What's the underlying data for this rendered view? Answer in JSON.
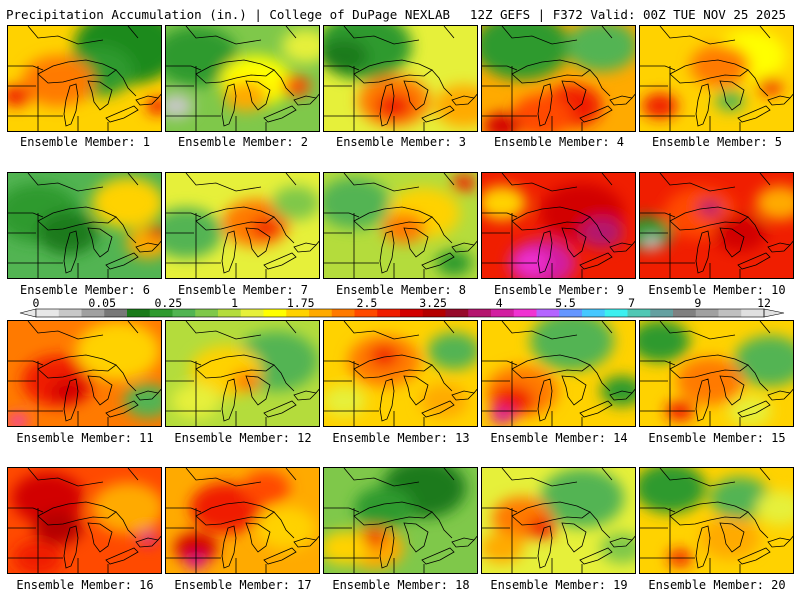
{
  "header": {
    "title": "Precipitation Accumulation (in.) | College of DuPage NEXLAB",
    "run_info": "12Z GEFS | F372 Valid: 00Z TUE NOV 25 2025"
  },
  "colorbar": {
    "tick_labels": [
      "0",
      "0.05",
      "0.25",
      "1",
      "1.75",
      "2.5",
      "3.25",
      "4",
      "5.5",
      "7",
      "9",
      "12"
    ],
    "colors": [
      "#e8e8e8",
      "#c8c8c8",
      "#a0a0a0",
      "#787878",
      "#1a7a1a",
      "#2f9a2f",
      "#52b452",
      "#7fc84a",
      "#b4dc3c",
      "#e6f03a",
      "#ffff00",
      "#ffd200",
      "#ffaa00",
      "#ff7a00",
      "#ff4a00",
      "#f01e00",
      "#d20000",
      "#b40000",
      "#960a2a",
      "#b4146e",
      "#d21ea0",
      "#f032d2",
      "#b464ff",
      "#6496ff",
      "#46c8ff",
      "#3cf0f0",
      "#50c8b4",
      "#64a0a0",
      "#808080",
      "#a0a0a0",
      "#c0c0c0",
      "#e0e0e0"
    ]
  },
  "members": [
    {
      "label": "Ensemble Member: 1",
      "base": "#ffd200",
      "blobs": [
        [
          "#1a8a1a",
          120,
          20,
          45
        ],
        [
          "#2f9a2f",
          90,
          45,
          30
        ],
        [
          "#ff7a00",
          50,
          55,
          30
        ],
        [
          "#f01e00",
          8,
          70,
          12
        ],
        [
          "#f01e00",
          150,
          80,
          10
        ]
      ]
    },
    {
      "label": "Ensemble Member: 2",
      "base": "#7fc84a",
      "blobs": [
        [
          "#2f9a2f",
          30,
          30,
          35
        ],
        [
          "#c8c8c8",
          10,
          80,
          14
        ],
        [
          "#ffff00",
          90,
          55,
          30
        ],
        [
          "#ffaa00",
          80,
          70,
          18
        ],
        [
          "#ff4a00",
          130,
          60,
          12
        ],
        [
          "#e6f03a",
          140,
          20,
          20
        ]
      ]
    },
    {
      "label": "Ensemble Member: 3",
      "base": "#e6f03a",
      "blobs": [
        [
          "#2f9a2f",
          40,
          20,
          40
        ],
        [
          "#1a7a1a",
          20,
          30,
          20
        ],
        [
          "#ff7a00",
          70,
          75,
          30
        ],
        [
          "#f01e00",
          70,
          80,
          15
        ],
        [
          "#ffaa00",
          140,
          80,
          25
        ]
      ]
    },
    {
      "label": "Ensemble Member: 4",
      "base": "#ffaa00",
      "blobs": [
        [
          "#2f9a2f",
          40,
          20,
          40
        ],
        [
          "#52b452",
          120,
          20,
          30
        ],
        [
          "#f01e00",
          90,
          80,
          25
        ],
        [
          "#ff4a00",
          60,
          90,
          25
        ],
        [
          "#d20000",
          20,
          100,
          15
        ]
      ]
    },
    {
      "label": "Ensemble Member: 5",
      "base": "#ffd200",
      "blobs": [
        [
          "#ffff00",
          110,
          30,
          30
        ],
        [
          "#ff7a00",
          80,
          40,
          25
        ],
        [
          "#f01e00",
          20,
          80,
          15
        ],
        [
          "#52b452",
          90,
          75,
          12
        ],
        [
          "#f01e00",
          130,
          60,
          10
        ]
      ]
    },
    {
      "label": "Ensemble Member: 6",
      "base": "#52b452",
      "blobs": [
        [
          "#2f9a2f",
          30,
          40,
          35
        ],
        [
          "#1a7a1a",
          60,
          60,
          25
        ],
        [
          "#ffd200",
          120,
          30,
          30
        ],
        [
          "#ffaa00",
          140,
          70,
          18
        ],
        [
          "#f01e00",
          150,
          60,
          8
        ]
      ]
    },
    {
      "label": "Ensemble Member: 7",
      "base": "#e6f03a",
      "blobs": [
        [
          "#52b452",
          20,
          60,
          30
        ],
        [
          "#ff7a00",
          90,
          50,
          28
        ],
        [
          "#f01e00",
          100,
          55,
          12
        ],
        [
          "#7fc84a",
          130,
          30,
          20
        ]
      ]
    },
    {
      "label": "Ensemble Member: 8",
      "base": "#b4dc3c",
      "blobs": [
        [
          "#52b452",
          30,
          30,
          30
        ],
        [
          "#ffd200",
          100,
          40,
          30
        ],
        [
          "#ff7a00",
          80,
          55,
          18
        ],
        [
          "#f01e00",
          140,
          10,
          10
        ],
        [
          "#2f9a2f",
          130,
          90,
          15
        ]
      ]
    },
    {
      "label": "Ensemble Member: 9",
      "base": "#f01e00",
      "blobs": [
        [
          "#d20000",
          100,
          40,
          35
        ],
        [
          "#d21ea0",
          60,
          90,
          28
        ],
        [
          "#f032d2",
          50,
          90,
          14
        ],
        [
          "#b4146e",
          120,
          60,
          18
        ],
        [
          "#ffd200",
          20,
          30,
          20
        ]
      ]
    },
    {
      "label": "Ensemble Member: 10",
      "base": "#f01e00",
      "blobs": [
        [
          "#2f9a2f",
          8,
          60,
          20
        ],
        [
          "#c8c8c8",
          12,
          70,
          8
        ],
        [
          "#ff4a00",
          60,
          40,
          30
        ],
        [
          "#d20000",
          100,
          60,
          22
        ],
        [
          "#b4146e",
          70,
          35,
          10
        ],
        [
          "#ffaa00",
          140,
          30,
          20
        ]
      ]
    },
    {
      "label": "Ensemble Member: 11",
      "base": "#ff7a00",
      "blobs": [
        [
          "#f01e00",
          50,
          60,
          30
        ],
        [
          "#d20000",
          60,
          70,
          15
        ],
        [
          "#ffd200",
          110,
          30,
          35
        ],
        [
          "#52b452",
          140,
          80,
          20
        ],
        [
          "#f032d2",
          10,
          100,
          8
        ]
      ]
    },
    {
      "label": "Ensemble Member: 12",
      "base": "#b4dc3c",
      "blobs": [
        [
          "#52b452",
          110,
          40,
          35
        ],
        [
          "#ffd200",
          60,
          50,
          30
        ],
        [
          "#ff7a00",
          80,
          60,
          12
        ],
        [
          "#e6f03a",
          30,
          80,
          20
        ]
      ]
    },
    {
      "label": "Ensemble Member: 13",
      "base": "#ffd200",
      "blobs": [
        [
          "#ff7a00",
          60,
          40,
          30
        ],
        [
          "#f01e00",
          60,
          35,
          12
        ],
        [
          "#52b452",
          130,
          30,
          22
        ],
        [
          "#ffaa00",
          120,
          80,
          20
        ],
        [
          "#e6f03a",
          20,
          80,
          18
        ]
      ]
    },
    {
      "label": "Ensemble Member: 14",
      "base": "#ffd200",
      "blobs": [
        [
          "#52b452",
          90,
          20,
          35
        ],
        [
          "#ff7a00",
          40,
          70,
          30
        ],
        [
          "#f01e00",
          30,
          80,
          18
        ],
        [
          "#d21ea0",
          20,
          95,
          10
        ],
        [
          "#2f9a2f",
          140,
          70,
          18
        ]
      ]
    },
    {
      "label": "Ensemble Member: 15",
      "base": "#ffd200",
      "blobs": [
        [
          "#2f9a2f",
          20,
          20,
          25
        ],
        [
          "#52b452",
          130,
          40,
          30
        ],
        [
          "#ff7a00",
          70,
          60,
          28
        ],
        [
          "#f01e00",
          40,
          90,
          12
        ],
        [
          "#e6f03a",
          110,
          90,
          18
        ]
      ]
    },
    {
      "label": "Ensemble Member: 16",
      "base": "#ff4a00",
      "blobs": [
        [
          "#d20000",
          40,
          30,
          30
        ],
        [
          "#b40000",
          50,
          60,
          20
        ],
        [
          "#ffaa00",
          120,
          40,
          30
        ],
        [
          "#d21ea0",
          140,
          70,
          8
        ],
        [
          "#f01e00",
          30,
          90,
          20
        ]
      ]
    },
    {
      "label": "Ensemble Member: 17",
      "base": "#ffaa00",
      "blobs": [
        [
          "#f01e00",
          60,
          40,
          30
        ],
        [
          "#d20000",
          30,
          80,
          18
        ],
        [
          "#ffd200",
          120,
          60,
          25
        ],
        [
          "#d21ea0",
          30,
          95,
          8
        ],
        [
          "#ff4a00",
          100,
          20,
          20
        ]
      ]
    },
    {
      "label": "Ensemble Member: 18",
      "base": "#7fc84a",
      "blobs": [
        [
          "#1a7a1a",
          100,
          20,
          35
        ],
        [
          "#2f9a2f",
          60,
          40,
          25
        ],
        [
          "#ffaa00",
          50,
          80,
          25
        ],
        [
          "#f01e00",
          50,
          70,
          10
        ],
        [
          "#ffd200",
          20,
          80,
          20
        ]
      ]
    },
    {
      "label": "Ensemble Member: 19",
      "base": "#e6f03a",
      "blobs": [
        [
          "#52b452",
          100,
          30,
          35
        ],
        [
          "#ff7a00",
          40,
          50,
          25
        ],
        [
          "#f01e00",
          60,
          60,
          12
        ],
        [
          "#ffaa00",
          20,
          80,
          18
        ],
        [
          "#7fc84a",
          140,
          80,
          18
        ]
      ]
    },
    {
      "label": "Ensemble Member: 20",
      "base": "#ffd200",
      "blobs": [
        [
          "#2f9a2f",
          30,
          20,
          30
        ],
        [
          "#52b452",
          100,
          30,
          25
        ],
        [
          "#ffaa00",
          90,
          70,
          25
        ],
        [
          "#e6f03a",
          140,
          40,
          20
        ],
        [
          "#f01e00",
          40,
          90,
          10
        ]
      ]
    }
  ]
}
